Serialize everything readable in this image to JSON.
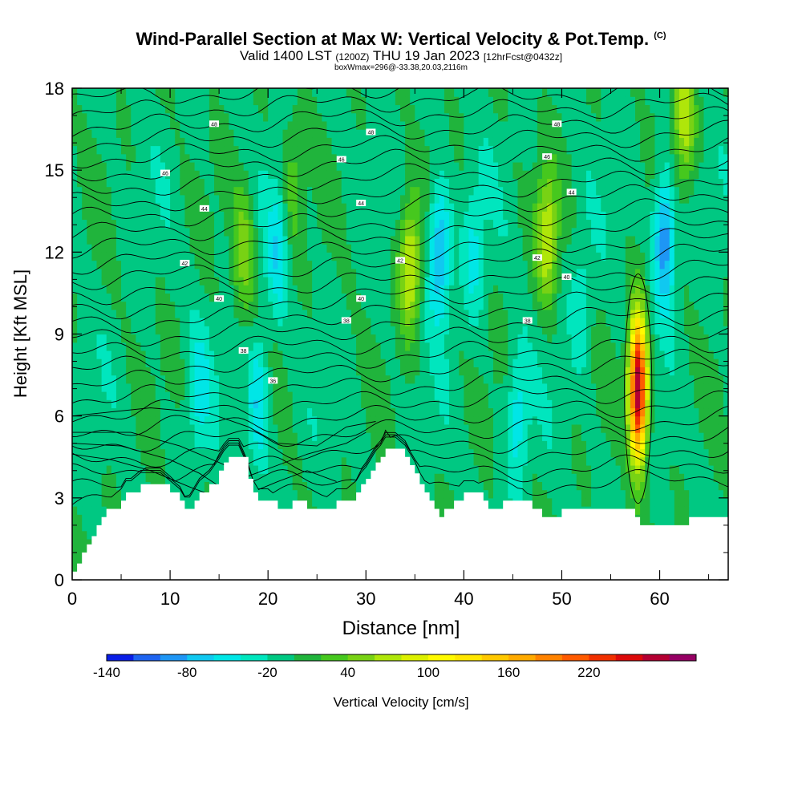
{
  "header": {
    "title": "Wind-Parallel Section at Max W: Vertical Velocity & Pot.Temp.",
    "title_mark": "(C)",
    "subtitle_valid": "Valid 1400 LST",
    "subtitle_utc": "(1200Z)",
    "subtitle_date": "THU 19 Jan 2023",
    "subtitle_fcst": "[12hrFcst@0432z]",
    "info": "boxWmax=296@-33.38,20.03,2116m"
  },
  "chart_data": {
    "type": "heatmap",
    "xlabel": "Distance [nm]",
    "ylabel": "Height [Kft MSL]",
    "xlim": [
      0,
      67
    ],
    "ylim": [
      0,
      18
    ],
    "x_ticks": [
      "0",
      "10",
      "20",
      "30",
      "40",
      "50",
      "60"
    ],
    "y_ticks": [
      "0",
      "3",
      "6",
      "9",
      "12",
      "15",
      "18"
    ],
    "terrain": {
      "x": [
        0,
        0.5,
        1,
        1.5,
        2,
        2.5,
        3,
        3.5,
        4,
        5,
        5.5,
        6,
        7,
        8,
        9,
        10,
        11,
        11.5,
        12,
        12.5,
        13,
        14,
        15,
        15.5,
        16,
        16.5,
        17,
        18,
        18.5,
        19,
        19.5,
        20,
        21,
        22,
        22.5,
        23,
        24,
        25,
        26,
        27,
        28,
        29,
        29.5,
        30,
        30.5,
        31,
        31.5,
        32,
        33,
        34,
        34.5,
        35,
        35.5,
        36,
        36.5,
        37,
        37.5,
        38,
        39,
        39.5,
        40,
        41,
        42,
        42.5,
        43,
        44,
        45,
        46,
        47,
        48,
        49,
        50,
        51,
        52,
        53,
        55,
        57,
        57.5,
        58,
        59,
        60,
        62,
        62.5,
        63,
        65,
        67
      ],
      "y": [
        0.3,
        0.6,
        1.0,
        1.3,
        1.6,
        2.0,
        2.3,
        2.6,
        2.6,
        2.9,
        3.2,
        3.2,
        3.5,
        3.5,
        3.5,
        3.2,
        2.9,
        2.6,
        2.6,
        2.9,
        3.2,
        3.5,
        4.0,
        4.3,
        4.5,
        4.5,
        4.5,
        3.7,
        3.2,
        2.9,
        2.9,
        2.9,
        2.6,
        2.6,
        2.9,
        2.9,
        2.6,
        2.6,
        2.6,
        2.9,
        2.9,
        3.2,
        3.5,
        3.7,
        4.0,
        4.3,
        4.5,
        4.8,
        4.8,
        4.5,
        4.2,
        3.9,
        3.5,
        3.2,
        2.9,
        2.6,
        2.3,
        2.6,
        2.9,
        2.9,
        3.2,
        3.2,
        2.9,
        2.6,
        2.6,
        2.9,
        2.9,
        2.9,
        2.6,
        2.3,
        2.3,
        2.6,
        2.6,
        2.6,
        2.6,
        2.6,
        2.6,
        2.3,
        2.0,
        2.0,
        2.0,
        2.0,
        2.0,
        2.3,
        2.3,
        2.3,
        2.3
      ]
    },
    "updraft_max": {
      "x": 57.8,
      "y": 7.0,
      "value": 296
    },
    "w_cores": [
      {
        "x": 17.5,
        "y": 12.0,
        "w": 60
      },
      {
        "x": 19.0,
        "y": 6.5,
        "w": -60
      },
      {
        "x": 21.0,
        "y": 12.0,
        "w": -50
      },
      {
        "x": 22.5,
        "y": 14.5,
        "w": 40
      },
      {
        "x": 34.5,
        "y": 11.5,
        "w": 90
      },
      {
        "x": 37.5,
        "y": 12.0,
        "w": -90
      },
      {
        "x": 41.0,
        "y": 12.0,
        "w": -40
      },
      {
        "x": 48.5,
        "y": 12.5,
        "w": 80
      },
      {
        "x": 52.0,
        "y": 10.0,
        "w": -30
      },
      {
        "x": 57.8,
        "y": 7.0,
        "w": 296
      },
      {
        "x": 60.5,
        "y": 12.5,
        "w": -100
      },
      {
        "x": 62.5,
        "y": 17.0,
        "w": 80
      },
      {
        "x": 45.5,
        "y": 6.0,
        "w": -50
      },
      {
        "x": 13.0,
        "y": 7.0,
        "w": -40
      }
    ],
    "theta_contours": {
      "levels": [
        30,
        32,
        34,
        36,
        38,
        40,
        42,
        44,
        46,
        48
      ],
      "labels": [
        {
          "x": 14.5,
          "y": 16.7,
          "text": "48"
        },
        {
          "x": 30.5,
          "y": 16.4,
          "text": "48"
        },
        {
          "x": 49.5,
          "y": 16.7,
          "text": "48"
        },
        {
          "x": 9.5,
          "y": 14.9,
          "text": "46"
        },
        {
          "x": 27.5,
          "y": 15.4,
          "text": "46"
        },
        {
          "x": 48.5,
          "y": 15.5,
          "text": "46"
        },
        {
          "x": 13.5,
          "y": 13.6,
          "text": "44"
        },
        {
          "x": 29.5,
          "y": 13.8,
          "text": "44"
        },
        {
          "x": 51.0,
          "y": 14.2,
          "text": "44"
        },
        {
          "x": 11.5,
          "y": 11.6,
          "text": "42"
        },
        {
          "x": 33.5,
          "y": 11.7,
          "text": "42"
        },
        {
          "x": 47.5,
          "y": 11.8,
          "text": "42"
        },
        {
          "x": 15.0,
          "y": 10.3,
          "text": "40"
        },
        {
          "x": 29.5,
          "y": 10.3,
          "text": "40"
        },
        {
          "x": 50.5,
          "y": 11.1,
          "text": "40"
        },
        {
          "x": 17.5,
          "y": 8.4,
          "text": "38"
        },
        {
          "x": 28.0,
          "y": 9.5,
          "text": "38"
        },
        {
          "x": 46.5,
          "y": 9.5,
          "text": "38"
        },
        {
          "x": 20.5,
          "y": 7.3,
          "text": "36"
        }
      ]
    },
    "colorbar": {
      "title": "Vertical Velocity [cm/s]",
      "tick_labels": [
        "-140",
        "-80",
        "-20",
        "40",
        "100",
        "160",
        "220"
      ],
      "tick_values": [
        -140,
        -80,
        -20,
        40,
        100,
        160,
        220
      ],
      "bins_start": -140,
      "bin_width": 20,
      "colors": [
        "#0a1ee6",
        "#1e64f0",
        "#1e96f5",
        "#10c8f0",
        "#00e6e6",
        "#00e6be",
        "#00c882",
        "#20b43c",
        "#46c81e",
        "#78d214",
        "#afe60a",
        "#dcf000",
        "#fffa00",
        "#ffe600",
        "#ffc800",
        "#ffaa00",
        "#ff8200",
        "#ff5a00",
        "#f03000",
        "#dc0a0a",
        "#b40032",
        "#960064"
      ]
    }
  }
}
